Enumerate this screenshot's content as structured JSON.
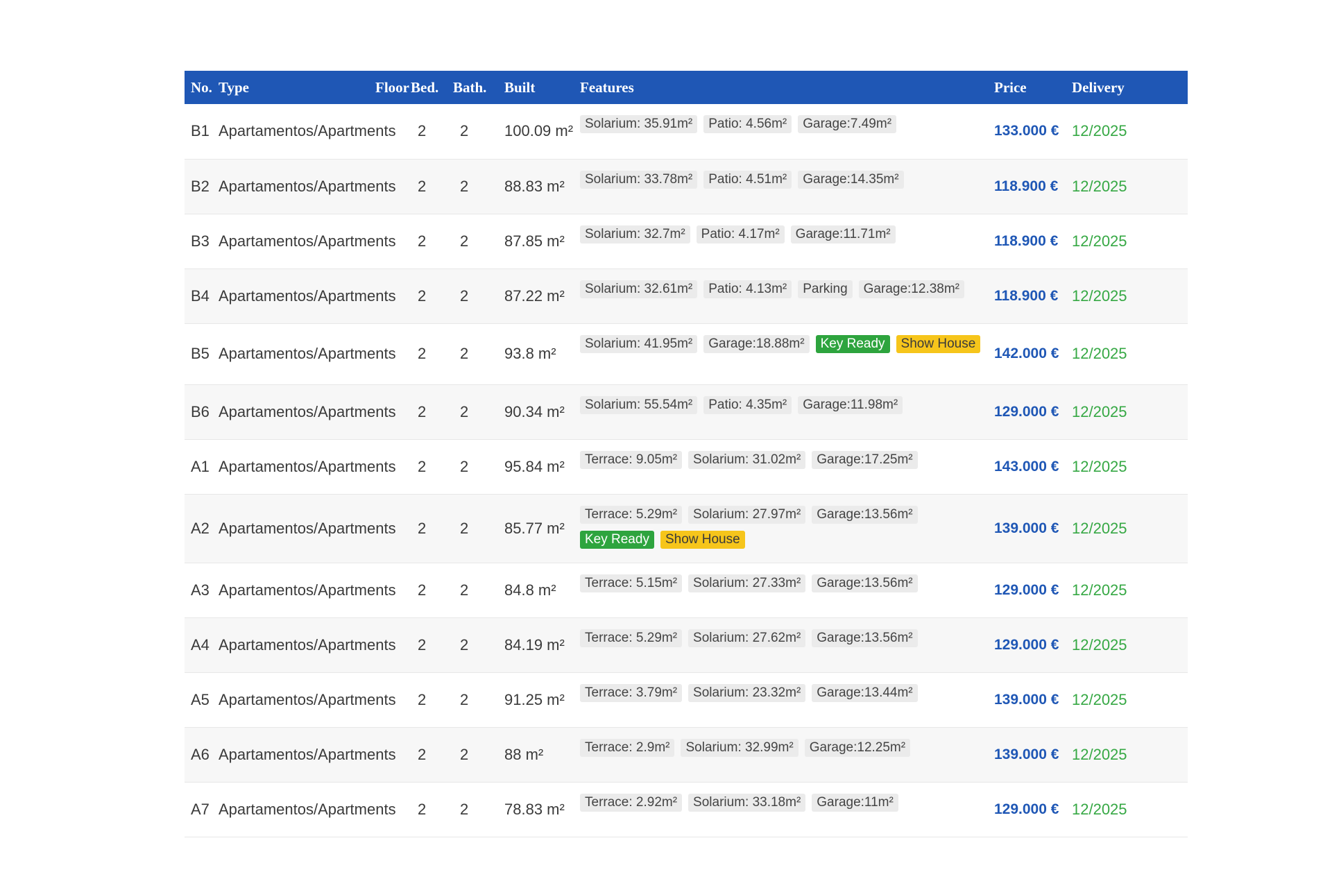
{
  "colors": {
    "header_bg": "#1f57b5",
    "price": "#1f57b5",
    "delivery": "#36a844",
    "chip_bg": "#ebebeb",
    "key_ready": "#2ea43e",
    "show_house": "#f6c51b"
  },
  "headers": {
    "no": "No.",
    "type": "Type",
    "floor": "Floor",
    "bed": "Bed.",
    "bath": "Bath.",
    "built": "Built",
    "features": "Features",
    "price": "Price",
    "delivery": "Delivery"
  },
  "rows": [
    {
      "no": "B1",
      "type": "Apartamentos/Apartments",
      "floor": "",
      "bed": "2",
      "bath": "2",
      "built": "100.09 m²",
      "features": [
        {
          "text": "Solarium: 35.91m²",
          "style": "plain"
        },
        {
          "text": "Patio: 4.56m²",
          "style": "plain"
        },
        {
          "text": "Garage:7.49m²",
          "style": "plain"
        }
      ],
      "price": "133.000 €",
      "delivery": "12/2025"
    },
    {
      "no": "B2",
      "type": "Apartamentos/Apartments",
      "floor": "",
      "bed": "2",
      "bath": "2",
      "built": "88.83 m²",
      "features": [
        {
          "text": "Solarium: 33.78m²",
          "style": "plain"
        },
        {
          "text": "Patio: 4.51m²",
          "style": "plain"
        },
        {
          "text": "Garage:14.35m²",
          "style": "plain"
        }
      ],
      "price": "118.900 €",
      "delivery": "12/2025"
    },
    {
      "no": "B3",
      "type": "Apartamentos/Apartments",
      "floor": "",
      "bed": "2",
      "bath": "2",
      "built": "87.85 m²",
      "features": [
        {
          "text": "Solarium: 32.7m²",
          "style": "plain"
        },
        {
          "text": "Patio: 4.17m²",
          "style": "plain"
        },
        {
          "text": "Garage:11.71m²",
          "style": "plain"
        }
      ],
      "price": "118.900 €",
      "delivery": "12/2025"
    },
    {
      "no": "B4",
      "type": "Apartamentos/Apartments",
      "floor": "",
      "bed": "2",
      "bath": "2",
      "built": "87.22 m²",
      "features": [
        {
          "text": "Solarium: 32.61m²",
          "style": "plain"
        },
        {
          "text": "Patio: 4.13m²",
          "style": "plain"
        },
        {
          "text": "Parking",
          "style": "plain"
        },
        {
          "text": "Garage:12.38m²",
          "style": "plain"
        }
      ],
      "price": "118.900 €",
      "delivery": "12/2025"
    },
    {
      "no": "B5",
      "type": "Apartamentos/Apartments",
      "floor": "",
      "bed": "2",
      "bath": "2",
      "built": "93.8 m²",
      "features": [
        {
          "text": "Solarium: 41.95m²",
          "style": "plain"
        },
        {
          "text": "Garage:18.88m²",
          "style": "plain"
        },
        {
          "text": "Key Ready",
          "style": "green"
        },
        {
          "text": "Show House",
          "style": "yellow"
        }
      ],
      "price": "142.000 €",
      "delivery": "12/2025"
    },
    {
      "no": "B6",
      "type": "Apartamentos/Apartments",
      "floor": "",
      "bed": "2",
      "bath": "2",
      "built": "90.34 m²",
      "features": [
        {
          "text": "Solarium: 55.54m²",
          "style": "plain"
        },
        {
          "text": "Patio: 4.35m²",
          "style": "plain"
        },
        {
          "text": "Garage:11.98m²",
          "style": "plain"
        }
      ],
      "price": "129.000 €",
      "delivery": "12/2025"
    },
    {
      "no": "A1",
      "type": "Apartamentos/Apartments",
      "floor": "",
      "bed": "2",
      "bath": "2",
      "built": "95.84 m²",
      "features": [
        {
          "text": "Terrace: 9.05m²",
          "style": "plain"
        },
        {
          "text": "Solarium: 31.02m²",
          "style": "plain"
        },
        {
          "text": "Garage:17.25m²",
          "style": "plain"
        }
      ],
      "price": "143.000 €",
      "delivery": "12/2025"
    },
    {
      "no": "A2",
      "type": "Apartamentos/Apartments",
      "floor": "",
      "bed": "2",
      "bath": "2",
      "built": "85.77 m²",
      "features": [
        {
          "text": "Terrace: 5.29m²",
          "style": "plain"
        },
        {
          "text": "Solarium: 27.97m²",
          "style": "plain"
        },
        {
          "text": "Garage:13.56m²",
          "style": "plain"
        },
        {
          "text": "Key Ready",
          "style": "green"
        },
        {
          "text": "Show House",
          "style": "yellow"
        }
      ],
      "price": "139.000 €",
      "delivery": "12/2025"
    },
    {
      "no": "A3",
      "type": "Apartamentos/Apartments",
      "floor": "",
      "bed": "2",
      "bath": "2",
      "built": "84.8 m²",
      "features": [
        {
          "text": "Terrace: 5.15m²",
          "style": "plain"
        },
        {
          "text": "Solarium: 27.33m²",
          "style": "plain"
        },
        {
          "text": "Garage:13.56m²",
          "style": "plain"
        }
      ],
      "price": "129.000 €",
      "delivery": "12/2025"
    },
    {
      "no": "A4",
      "type": "Apartamentos/Apartments",
      "floor": "",
      "bed": "2",
      "bath": "2",
      "built": "84.19 m²",
      "features": [
        {
          "text": "Terrace: 5.29m²",
          "style": "plain"
        },
        {
          "text": "Solarium: 27.62m²",
          "style": "plain"
        },
        {
          "text": "Garage:13.56m²",
          "style": "plain"
        }
      ],
      "price": "129.000 €",
      "delivery": "12/2025"
    },
    {
      "no": "A5",
      "type": "Apartamentos/Apartments",
      "floor": "",
      "bed": "2",
      "bath": "2",
      "built": "91.25 m²",
      "features": [
        {
          "text": "Terrace: 3.79m²",
          "style": "plain"
        },
        {
          "text": "Solarium: 23.32m²",
          "style": "plain"
        },
        {
          "text": "Garage:13.44m²",
          "style": "plain"
        }
      ],
      "price": "139.000 €",
      "delivery": "12/2025"
    },
    {
      "no": "A6",
      "type": "Apartamentos/Apartments",
      "floor": "",
      "bed": "2",
      "bath": "2",
      "built": "88 m²",
      "features": [
        {
          "text": "Terrace: 2.9m²",
          "style": "plain"
        },
        {
          "text": "Solarium: 32.99m²",
          "style": "plain"
        },
        {
          "text": "Garage:12.25m²",
          "style": "plain"
        }
      ],
      "price": "139.000 €",
      "delivery": "12/2025"
    },
    {
      "no": "A7",
      "type": "Apartamentos/Apartments",
      "floor": "",
      "bed": "2",
      "bath": "2",
      "built": "78.83 m²",
      "features": [
        {
          "text": "Terrace: 2.92m²",
          "style": "plain"
        },
        {
          "text": "Solarium: 33.18m²",
          "style": "plain"
        },
        {
          "text": "Garage:11m²",
          "style": "plain"
        }
      ],
      "price": "129.000 €",
      "delivery": "12/2025"
    }
  ]
}
